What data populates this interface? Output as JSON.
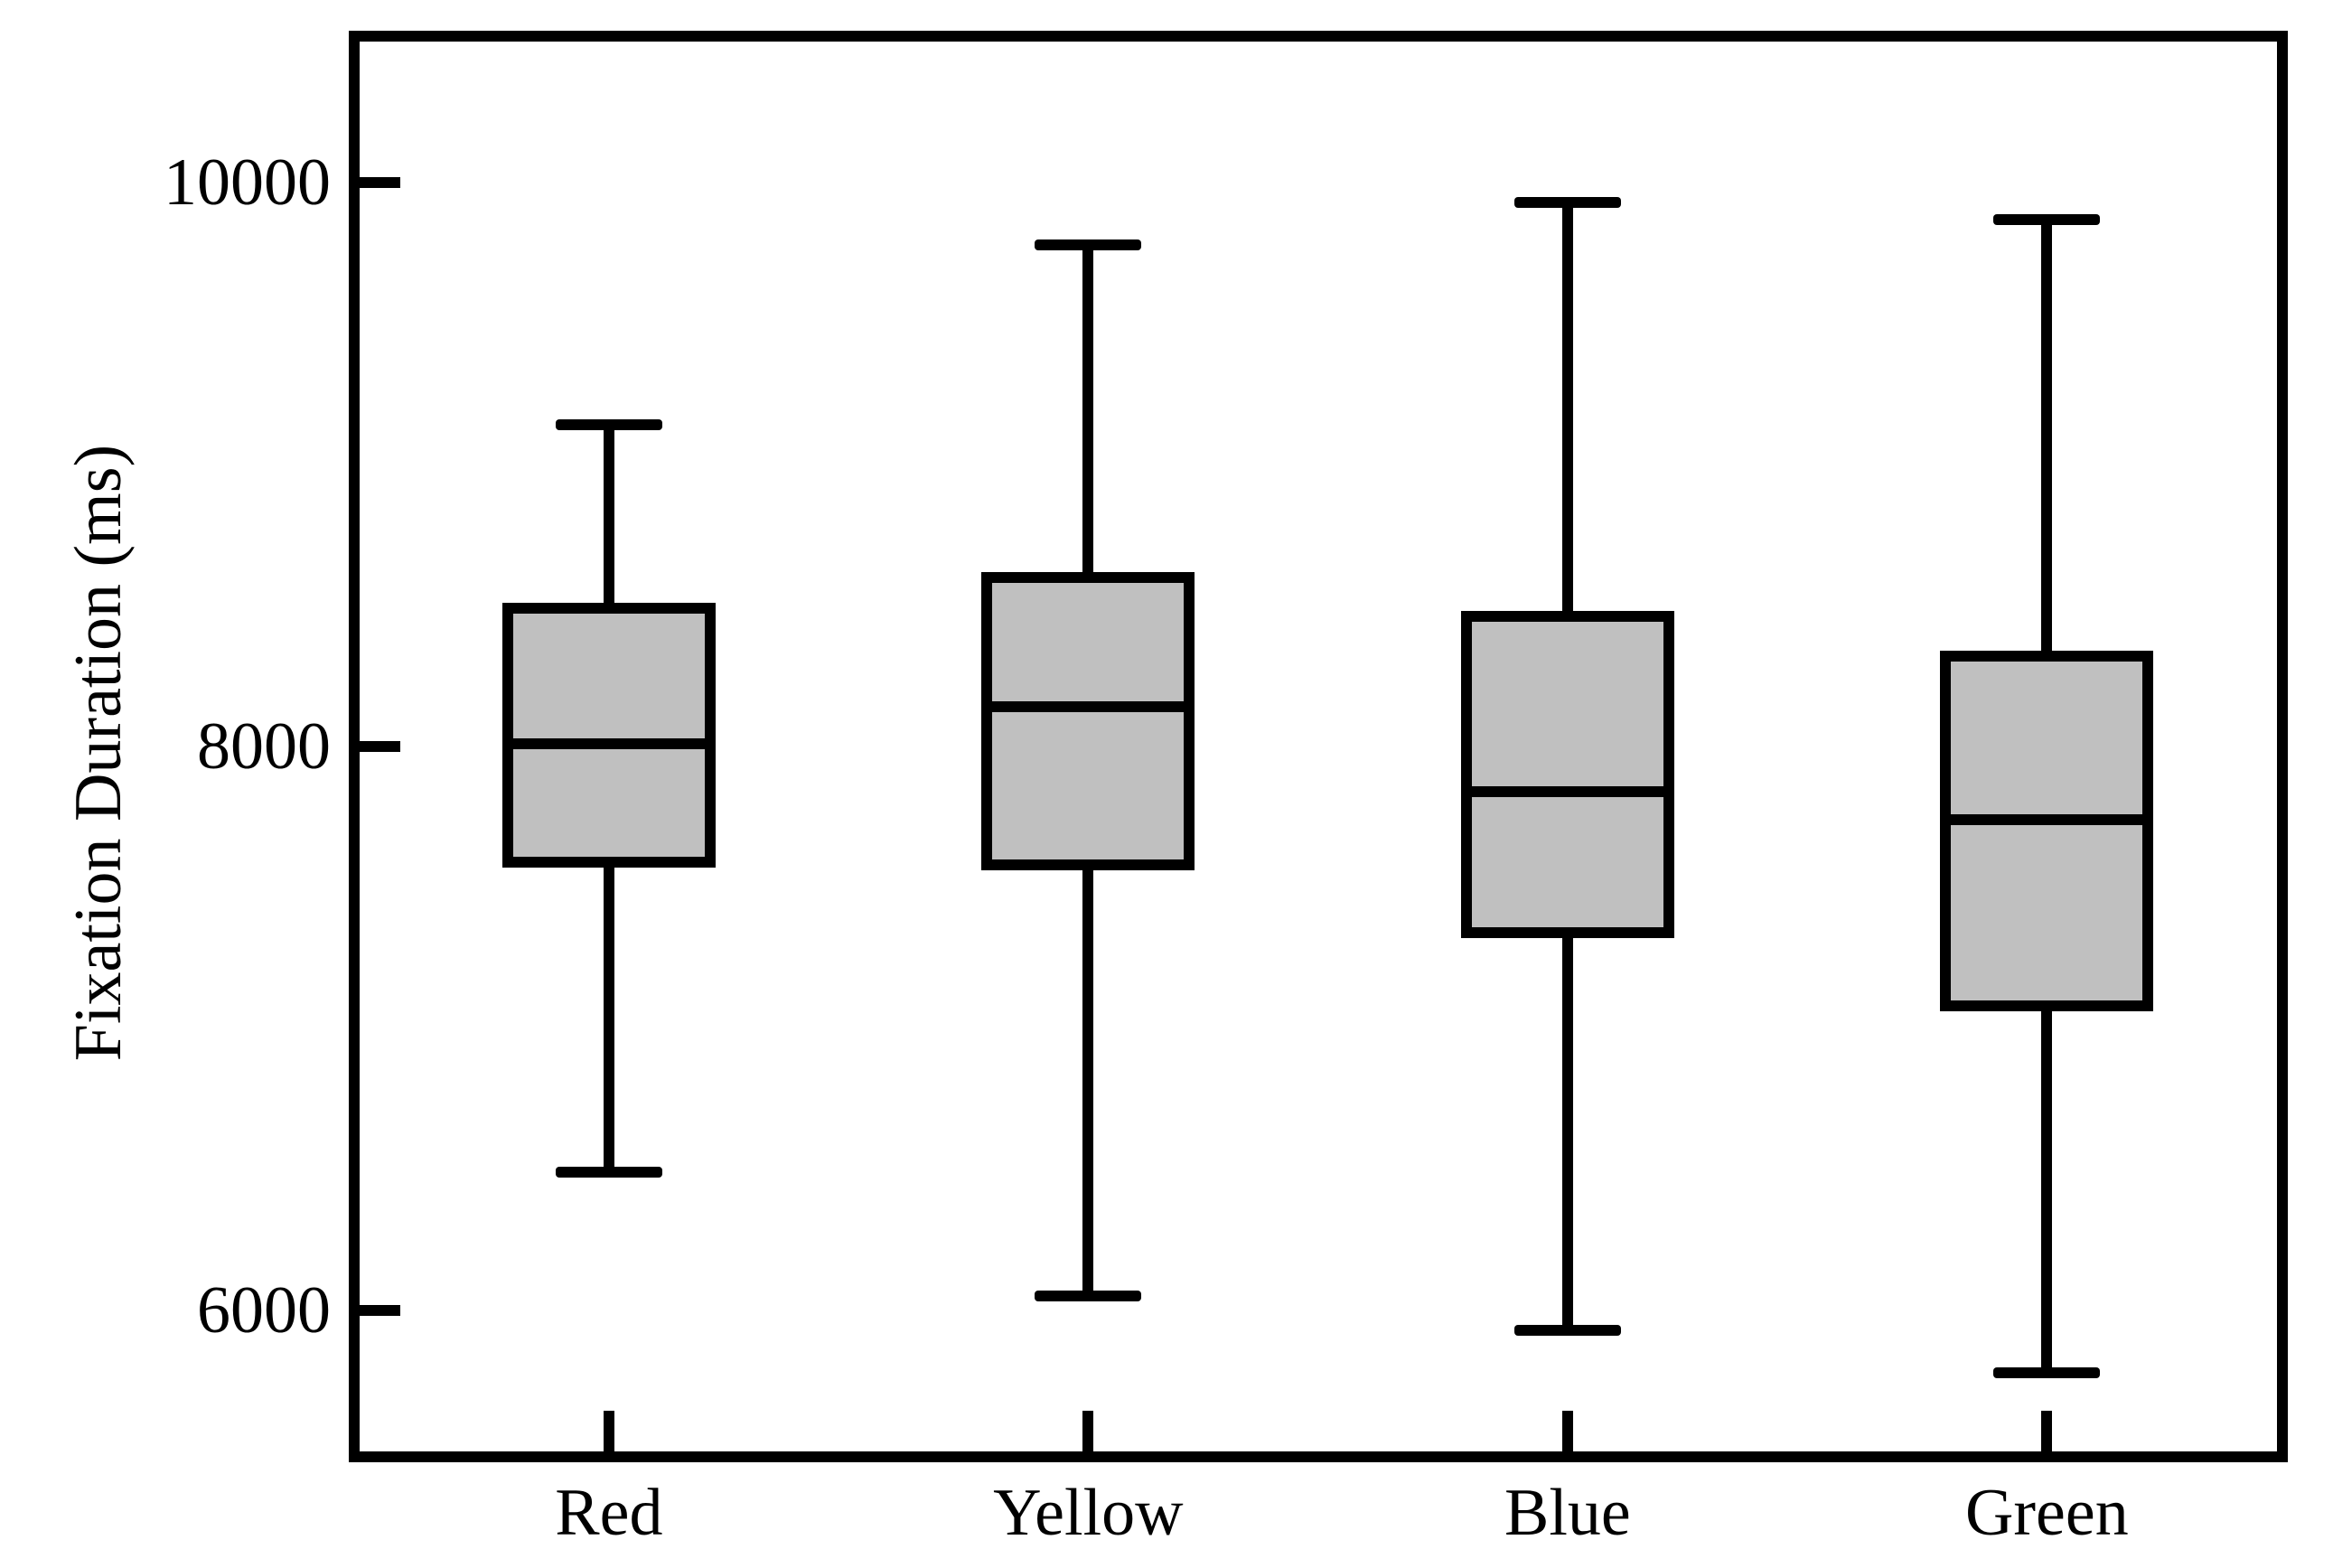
{
  "figure": {
    "background_color": "#ffffff",
    "line_color": "#000000",
    "box_fill_color": "#c0c0c0"
  },
  "chart_data": {
    "type": "box",
    "title": "",
    "xlabel": "",
    "ylabel": "Fixation Duration (ms)",
    "ylim": [
      5500,
      10500
    ],
    "grid": false,
    "legend": "none",
    "categories": [
      "Red",
      "Yellow",
      "Blue",
      "Green"
    ],
    "yticks": [
      {
        "value": 10000,
        "label": "10000"
      },
      {
        "value": 8000,
        "label": "8000"
      },
      {
        "value": 6000,
        "label": "6000"
      }
    ],
    "series": [
      {
        "name": "Red",
        "whisker_low": 6490,
        "q1": 7590,
        "median": 8010,
        "q3": 8490,
        "whisker_high": 9140
      },
      {
        "name": "Yellow",
        "whisker_low": 6050,
        "q1": 7580,
        "median": 8140,
        "q3": 8600,
        "whisker_high": 9780
      },
      {
        "name": "Blue",
        "whisker_low": 5930,
        "q1": 7340,
        "median": 7840,
        "q3": 8460,
        "whisker_high": 9930
      },
      {
        "name": "Green",
        "whisker_low": 5780,
        "q1": 7080,
        "median": 7740,
        "q3": 8320,
        "whisker_high": 9870
      }
    ]
  }
}
